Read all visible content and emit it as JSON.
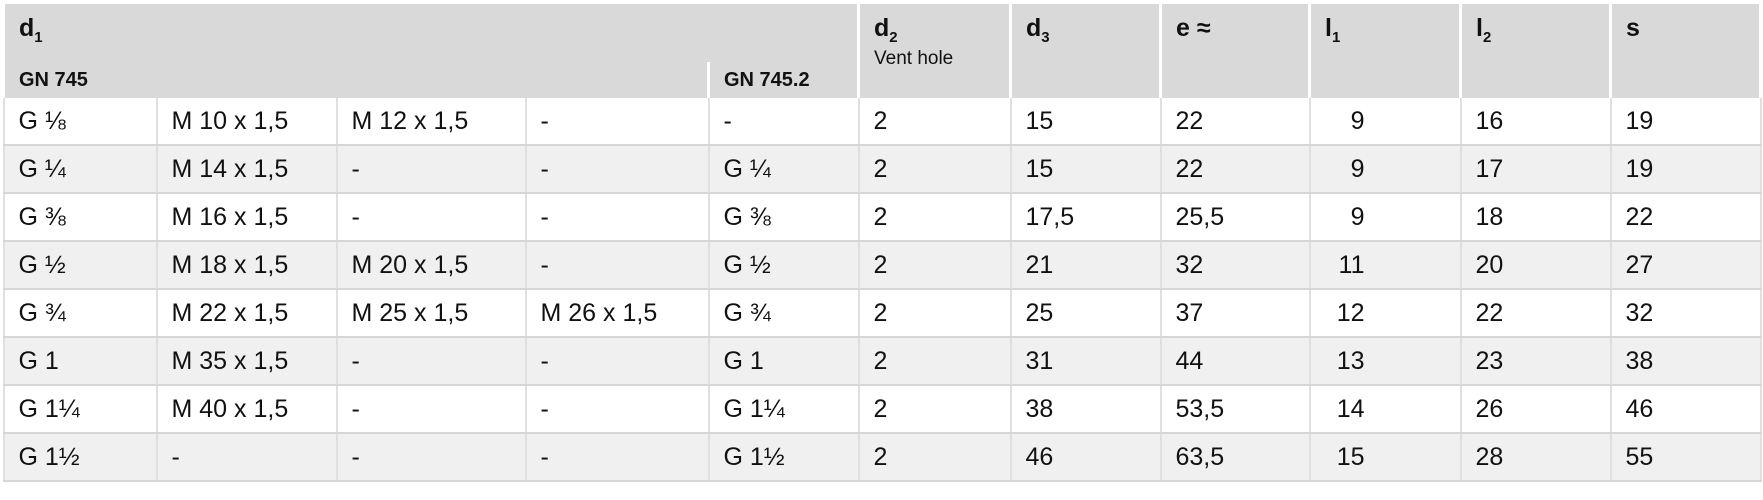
{
  "header": {
    "d1": {
      "text": "d",
      "sub": "1"
    },
    "gn745": "GN 745",
    "gn7452": "GN 745.2",
    "columns": [
      {
        "text": "d",
        "sub": "2",
        "note": "Vent hole"
      },
      {
        "text": "d",
        "sub": "3"
      },
      {
        "text": "e ≈"
      },
      {
        "text": "l",
        "sub": "1"
      },
      {
        "text": "l",
        "sub": "2"
      },
      {
        "text": "s"
      }
    ]
  },
  "table": {
    "rows": [
      [
        "G ⅛",
        "M 10 x 1,5",
        "M 12 x 1,5",
        "-",
        "-",
        "2",
        "15",
        "22",
        "9",
        "16",
        "19"
      ],
      [
        "G ¼",
        "M 14 x 1,5",
        "-",
        "-",
        "G ¼",
        "2",
        "15",
        "22",
        "9",
        "17",
        "19"
      ],
      [
        "G ⅜",
        "M 16 x 1,5",
        "-",
        "-",
        "G ⅜",
        "2",
        "17,5",
        "25,5",
        "9",
        "18",
        "22"
      ],
      [
        "G ½",
        "M 18 x 1,5",
        "M 20 x 1,5",
        "-",
        "G ½",
        "2",
        "21",
        "32",
        "11",
        "20",
        "27"
      ],
      [
        "G ¾",
        "M 22 x 1,5",
        "M 25 x 1,5",
        "M 26 x 1,5",
        "G ¾",
        "2",
        "25",
        "37",
        "12",
        "22",
        "32"
      ],
      [
        "G 1",
        "M 35 x 1,5",
        "-",
        "-",
        "G 1",
        "2",
        "31",
        "44",
        "13",
        "23",
        "38"
      ],
      [
        "G 1¼",
        "M 40 x 1,5",
        "-",
        "-",
        "G 1¼",
        "2",
        "38",
        "53,5",
        "14",
        "26",
        "46"
      ],
      [
        "G 1½",
        "-",
        "-",
        "-",
        "G 1½",
        "2",
        "46",
        "63,5",
        "15",
        "28",
        "55"
      ]
    ]
  }
}
